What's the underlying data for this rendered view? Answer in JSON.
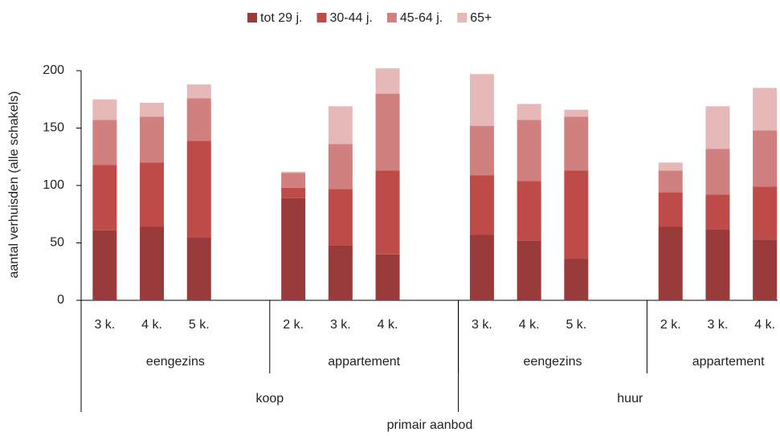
{
  "chart_data": {
    "type": "stacked_bar",
    "y_label": "aantal verhuisden (alle schakels)",
    "x_label": "primair aanbod",
    "groups": [
      {
        "name": "koop",
        "subgroups": [
          {
            "name": "eengezins",
            "categories": [
              "3 k.",
              "4 k.",
              "5 k."
            ]
          },
          {
            "name": "appartement",
            "categories": [
              "2 k.",
              "3 k.",
              "4 k."
            ]
          }
        ]
      },
      {
        "name": "huur",
        "subgroups": [
          {
            "name": "eengezins",
            "categories": [
              "3 k.",
              "4 k.",
              "5 k."
            ]
          },
          {
            "name": "appartement",
            "categories": [
              "2 k.",
              "3 k.",
              "4 k."
            ]
          }
        ]
      }
    ],
    "series": [
      {
        "name": "tot 29 j.",
        "color": "#993b3b",
        "values": [
          61,
          64,
          55,
          89,
          48,
          40,
          57,
          52,
          36,
          64,
          62,
          53
        ]
      },
      {
        "name": "30-44 j.",
        "color": "#be4b48",
        "values": [
          57,
          56,
          84,
          9,
          49,
          73,
          52,
          52,
          77,
          30,
          30,
          46
        ]
      },
      {
        "name": "45-64 j.",
        "color": "#d0807e",
        "values": [
          39,
          40,
          37,
          13,
          39,
          67,
          43,
          53,
          47,
          19,
          40,
          49
        ]
      },
      {
        "name": "65+",
        "color": "#e6b9b8",
        "values": [
          18,
          12,
          12,
          1,
          33,
          22,
          45,
          14,
          6,
          7,
          37,
          37
        ]
      }
    ],
    "ylim": [
      0,
      200
    ],
    "yticks": [
      0,
      50,
      100,
      150,
      200
    ],
    "grid": false,
    "legend": "top"
  }
}
